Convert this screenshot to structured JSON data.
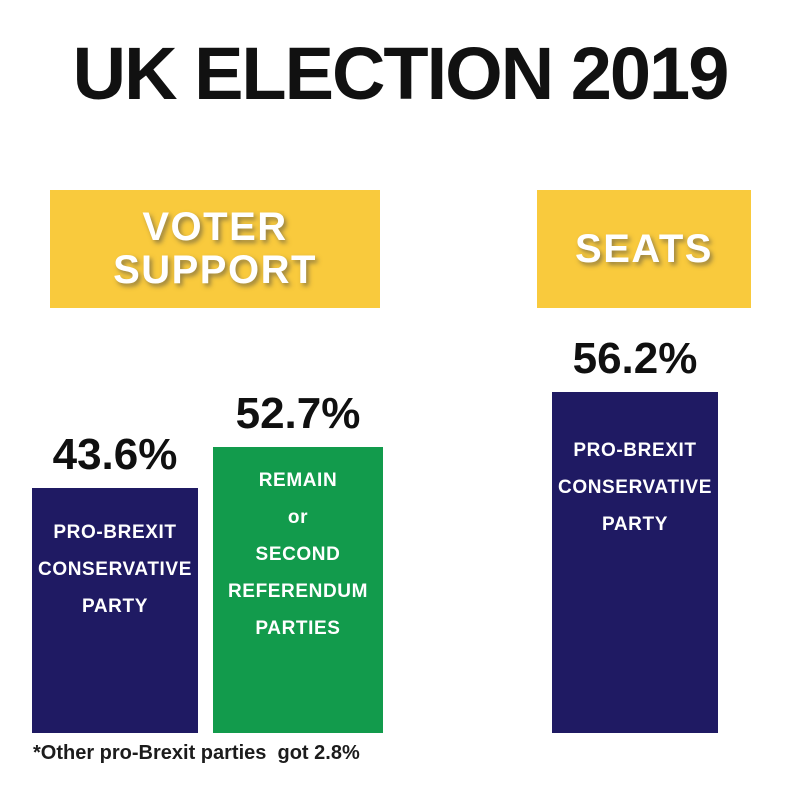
{
  "chart_data": {
    "type": "bar",
    "title": "UK ELECTION 2019",
    "unit": "%",
    "ylim": [
      0,
      60
    ],
    "grid": false,
    "legend": false,
    "footnote": "*Other pro-Brexit parties  got 2.8%",
    "colors": {
      "banner_yellow": "#F9CA3D",
      "bar_navy": "#1F1A63",
      "bar_green": "#129B4C",
      "title_black": "#111111",
      "bar_text_white": "#FFFFFF"
    },
    "groups": [
      {
        "header": "VOTER SUPPORT",
        "header_lines": [
          "VOTER",
          "SUPPORT"
        ],
        "bars": [
          {
            "value": 43.6,
            "value_label": "43.6%",
            "color": "#1F1A63",
            "lines": [
              "PRO-BREXIT",
              "CONSERVATIVE",
              "PARTY"
            ]
          },
          {
            "value": 52.7,
            "value_label": "52.7%",
            "color": "#129B4C",
            "lines": [
              "REMAIN",
              "or",
              "SECOND",
              "REFERENDUM",
              "PARTIES"
            ]
          }
        ]
      },
      {
        "header": "SEATS",
        "header_lines": [
          "SEATS"
        ],
        "bars": [
          {
            "value": 56.2,
            "value_label": "56.2%",
            "color": "#1F1A63",
            "lines": [
              "PRO-BREXIT",
              "CONSERVATIVE",
              "PARTY"
            ]
          }
        ]
      }
    ]
  }
}
